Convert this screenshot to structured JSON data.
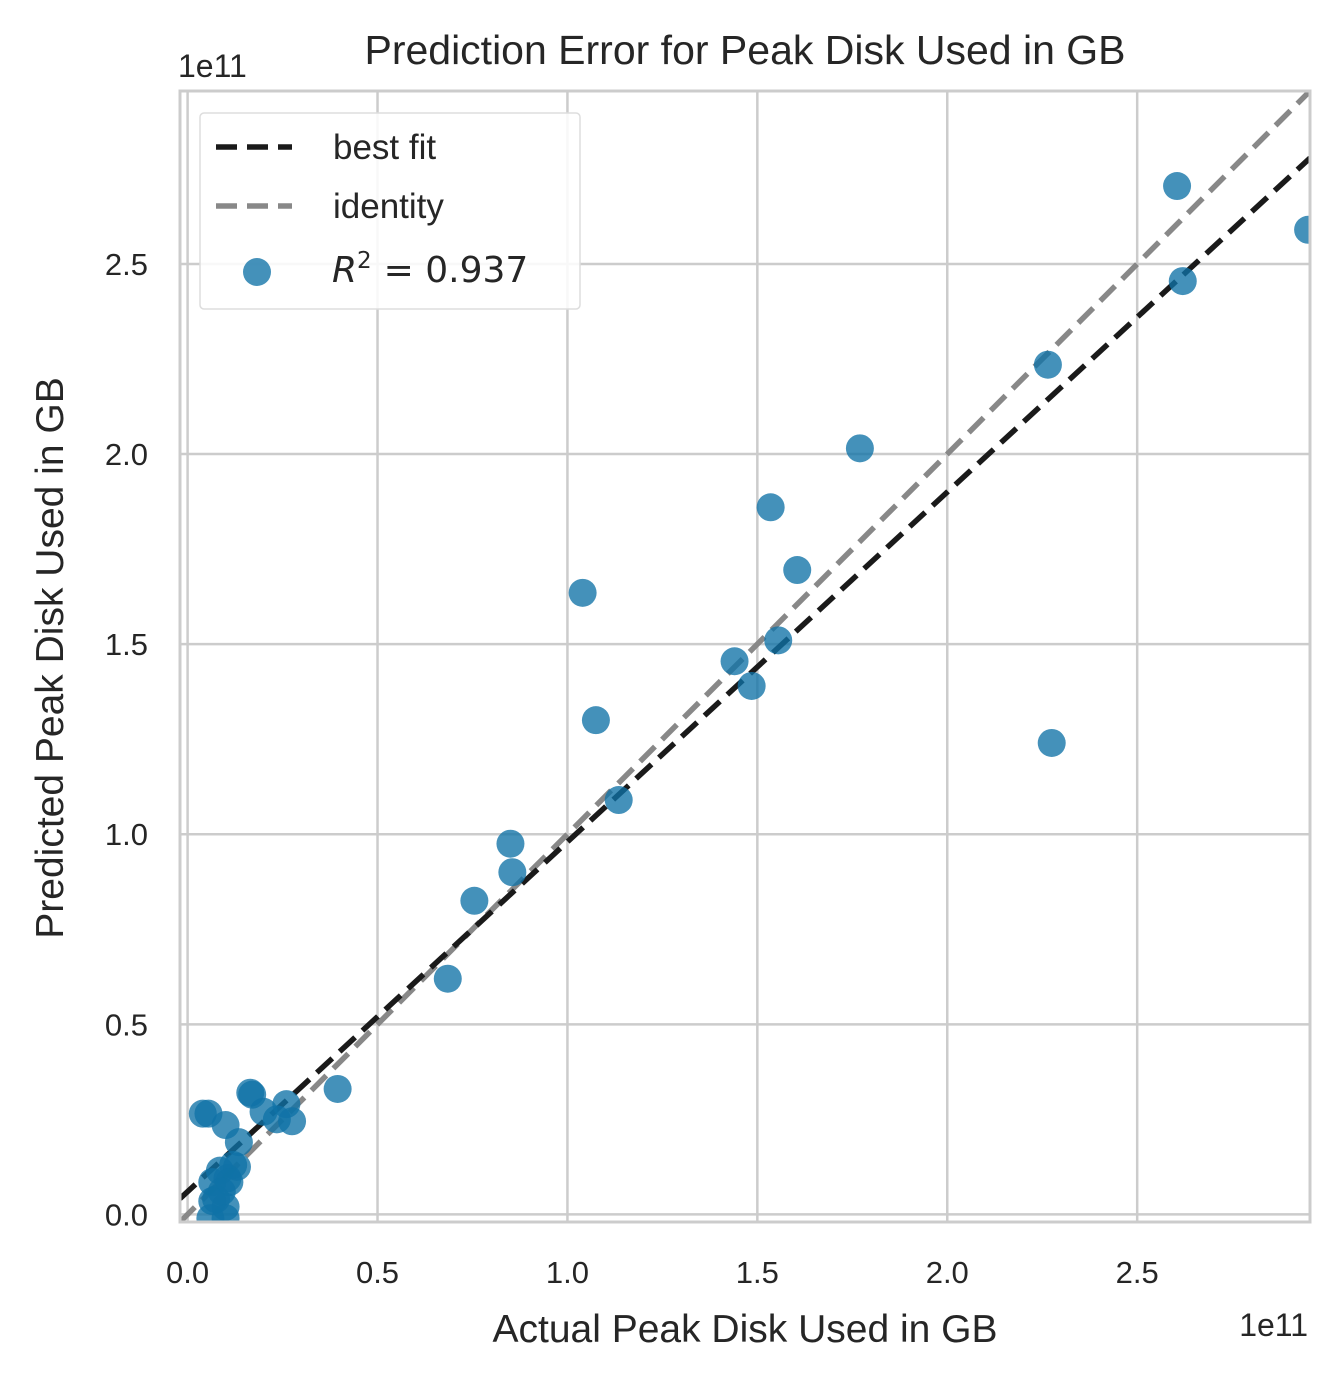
{
  "chart_data": {
    "type": "scatter",
    "title": "Prediction Error for Peak Disk Used in GB",
    "xlabel": "Actual Peak Disk Used in GB",
    "ylabel": "Predicted Peak Disk Used in GB",
    "x_exponent": "1e11",
    "y_exponent": "1e11",
    "xlim": [
      -0.02,
      2.955
    ],
    "ylim": [
      -0.02,
      2.955
    ],
    "x_ticks": [
      "0.0",
      "0.5",
      "1.0",
      "1.5",
      "2.0",
      "2.5"
    ],
    "y_ticks": [
      "0.0",
      "0.5",
      "1.0",
      "1.5",
      "2.0",
      "2.5"
    ],
    "grid": true,
    "legend_position": "top-left",
    "legend": {
      "best_fit": "best fit",
      "identity": "identity",
      "score_label": "R",
      "score_sup": "2",
      "score_value": "= 0.937"
    },
    "best_fit_line": {
      "intercept": 0.06,
      "slope": 0.92
    },
    "identity_line": {
      "intercept": 0.0,
      "slope": 1.0
    },
    "colors": {
      "points": "#0f72a6",
      "best_fit": "#1a1a1a",
      "identity": "#888888",
      "grid": "#cccccc",
      "frame": "#cccccc"
    },
    "points": [
      [
        2.605,
        2.705
      ],
      [
        2.95,
        2.59
      ],
      [
        2.62,
        2.455
      ],
      [
        2.265,
        2.235
      ],
      [
        1.77,
        2.015
      ],
      [
        1.535,
        1.86
      ],
      [
        1.605,
        1.695
      ],
      [
        1.04,
        1.635
      ],
      [
        1.555,
        1.51
      ],
      [
        1.44,
        1.455
      ],
      [
        1.485,
        1.39
      ],
      [
        1.075,
        1.3
      ],
      [
        2.275,
        1.24
      ],
      [
        1.135,
        1.09
      ],
      [
        0.85,
        0.975
      ],
      [
        0.855,
        0.9
      ],
      [
        0.755,
        0.825
      ],
      [
        0.685,
        0.62
      ],
      [
        0.395,
        0.33
      ],
      [
        0.165,
        0.32
      ],
      [
        0.17,
        0.315
      ],
      [
        0.26,
        0.29
      ],
      [
        0.2,
        0.27
      ],
      [
        0.275,
        0.245
      ],
      [
        0.235,
        0.25
      ],
      [
        0.04,
        0.265
      ],
      [
        0.055,
        0.265
      ],
      [
        0.1,
        0.235
      ],
      [
        0.135,
        0.19
      ],
      [
        0.12,
        0.13
      ],
      [
        0.13,
        0.125
      ],
      [
        0.085,
        0.115
      ],
      [
        0.105,
        0.095
      ],
      [
        0.065,
        0.085
      ],
      [
        0.11,
        0.085
      ],
      [
        0.09,
        0.06
      ],
      [
        0.075,
        0.04
      ],
      [
        0.065,
        0.035
      ],
      [
        0.1,
        0.02
      ],
      [
        0.06,
        -0.01
      ],
      [
        0.1,
        -0.01
      ]
    ]
  }
}
